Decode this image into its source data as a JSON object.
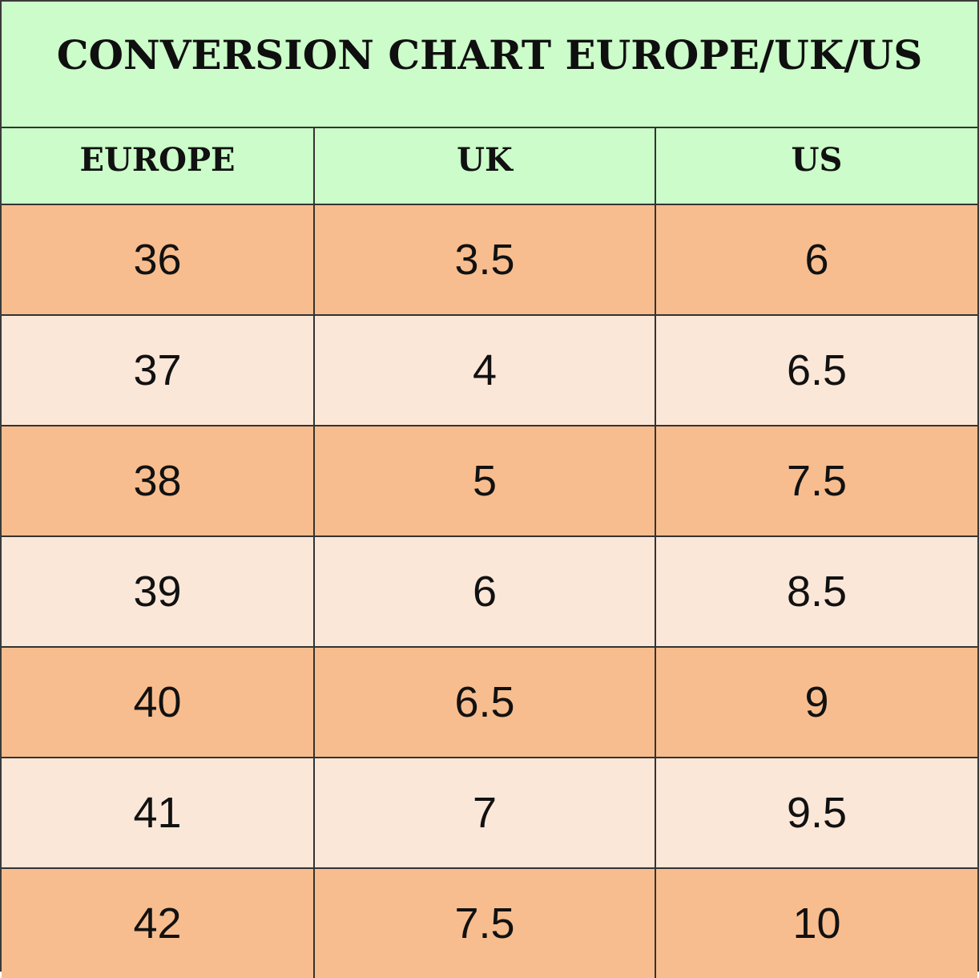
{
  "title": "CONVERSION CHART EUROPE/UK/US",
  "columns": [
    "EUROPE",
    "UK",
    "US"
  ],
  "rows": [
    [
      "36",
      "3.5",
      "6"
    ],
    [
      "37",
      "4",
      "6.5"
    ],
    [
      "38",
      "5",
      "7.5"
    ],
    [
      "39",
      "6",
      "8.5"
    ],
    [
      "40",
      "6.5",
      "9"
    ],
    [
      "41",
      "7",
      "9.5"
    ],
    [
      "42",
      "7.5",
      "10"
    ]
  ],
  "colors": {
    "header_background": "#cbfcc9",
    "row_dark": "#f8bd8e",
    "row_light": "#fbe7d8",
    "grid_line": "#333333"
  }
}
